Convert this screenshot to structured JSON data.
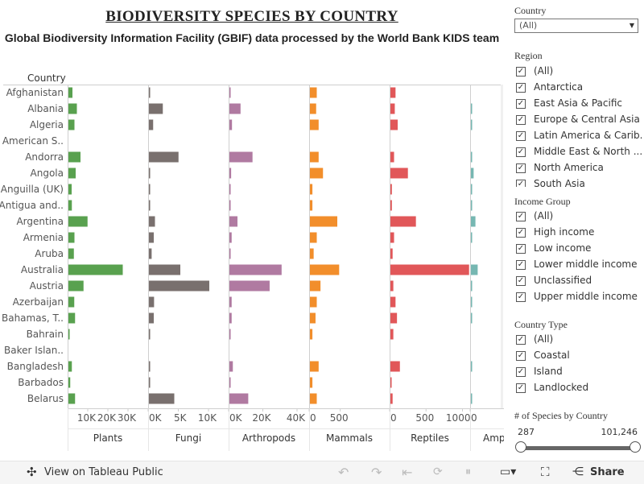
{
  "title": "BIODIVERSITY SPECIES BY COUNTRY",
  "subtitle": "Global Biodiversity Information Facility (GBIF) data processed by the World Bank KIDS team",
  "chart_data": {
    "type": "bar",
    "orientation": "horizontal",
    "row_header": "Country",
    "categories": [
      "Afghanistan",
      "Albania",
      "Algeria",
      "American S..",
      "Andorra",
      "Angola",
      "Anguilla (UK)",
      "Antigua and..",
      "Argentina",
      "Armenia",
      "Aruba",
      "Australia",
      "Austria",
      "Azerbaijan",
      "Bahamas, T..",
      "Bahrain",
      "Baker Islan..",
      "Bangladesh",
      "Barbados",
      "Belarus"
    ],
    "panels": [
      {
        "name": "Plants",
        "color": "#59a14f",
        "min": 0,
        "max": 30000,
        "ticks": [
          {
            "v": 10000,
            "label": "10K"
          },
          {
            "v": 20000,
            "label": "20K"
          },
          {
            "v": 30000,
            "label": "30K"
          }
        ],
        "values": [
          2000,
          4200,
          3000,
          0,
          6000,
          3600,
          1600,
          1700,
          9500,
          3000,
          2700,
          27000,
          7500,
          2900,
          3300,
          400,
          0,
          1700,
          900,
          3300
        ]
      },
      {
        "name": "Fungi",
        "color": "#79706e",
        "min": 0,
        "max": 10000,
        "ticks": [
          {
            "v": 0,
            "label": "0K"
          },
          {
            "v": 5000,
            "label": "5K"
          },
          {
            "v": 10000,
            "label": "10K"
          }
        ],
        "values": [
          150,
          2300,
          700,
          0,
          4900,
          150,
          100,
          80,
          1000,
          800,
          450,
          5200,
          10000,
          850,
          800,
          60,
          0,
          200,
          100,
          4200
        ]
      },
      {
        "name": "Arthropods",
        "color": "#b07aa1",
        "min": 0,
        "max": 40000,
        "ticks": [
          {
            "v": 0,
            "label": "0K"
          },
          {
            "v": 20000,
            "label": "20K"
          },
          {
            "v": 40000,
            "label": "40K"
          }
        ],
        "values": [
          500,
          6500,
          1500,
          0,
          13500,
          1000,
          500,
          500,
          4700,
          1300,
          400,
          30500,
          23500,
          1300,
          1300,
          200,
          0,
          2000,
          300,
          11000
        ]
      },
      {
        "name": "Mammals",
        "color": "#f28e2b",
        "min": 0,
        "max": 1100,
        "ticks": [
          {
            "v": 0,
            "label": "0"
          },
          {
            "v": 500,
            "label": "500"
          }
        ],
        "values": [
          110,
          100,
          140,
          0,
          140,
          210,
          40,
          40,
          440,
          110,
          60,
          470,
          170,
          110,
          90,
          40,
          0,
          140,
          40,
          110
        ]
      },
      {
        "name": "Reptiles",
        "color": "#e15759",
        "min": 0,
        "max": 1050,
        "ticks": [
          {
            "v": 0,
            "label": "0"
          },
          {
            "v": 500,
            "label": "500"
          },
          {
            "v": 1000,
            "label": "1000"
          }
        ],
        "values": [
          70,
          60,
          100,
          0,
          50,
          240,
          20,
          20,
          350,
          50,
          30,
          1080,
          40,
          70,
          90,
          40,
          0,
          130,
          10,
          30
        ]
      },
      {
        "name": "Amp",
        "color": "#76b7b2",
        "min": 0,
        "max": 100,
        "ticks": [
          {
            "v": 0,
            "label": "0"
          }
        ],
        "values": [
          0,
          2,
          2,
          0,
          2,
          12,
          1,
          1,
          20,
          1,
          0,
          30,
          2,
          1,
          1,
          0,
          0,
          5,
          0,
          1
        ]
      }
    ]
  },
  "filters": {
    "country": {
      "label": "Country",
      "selected": "(All)"
    },
    "region": {
      "label": "Region",
      "items": [
        "(All)",
        "Antarctica",
        "East Asia & Pacific",
        "Europe & Central Asia",
        "Latin America & Carib...",
        "Middle East & North ...",
        "North America",
        "South Asia"
      ]
    },
    "income": {
      "label": "Income Group",
      "items": [
        "(All)",
        "High income",
        "Low income",
        "Lower middle income",
        "Unclassified",
        "Upper middle income"
      ]
    },
    "type": {
      "label": "Country Type",
      "items": [
        "(All)",
        "Coastal",
        "Island",
        "Landlocked"
      ]
    },
    "species": {
      "label": "# of Species by Country",
      "min": "287",
      "max": "101,246"
    }
  },
  "toolbar": {
    "view_label": "View on Tableau Public",
    "share_label": "Share"
  },
  "colors": {
    "axis": "#cfcfcf",
    "text": "#555555"
  }
}
